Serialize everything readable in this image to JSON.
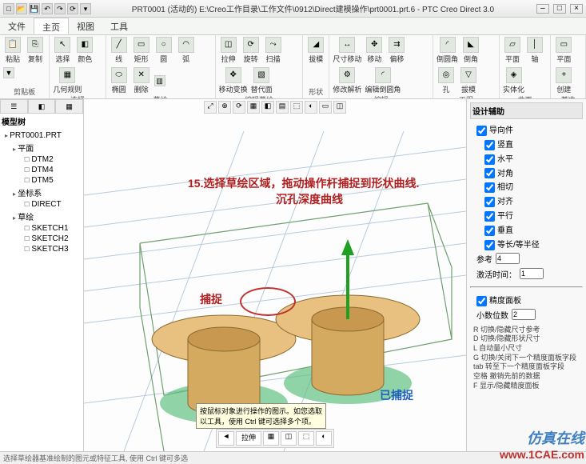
{
  "window": {
    "title": "PRT0001 (活动的) E:\\Creo工作目录\\工作文件\\0912\\Direct建模操作\\prt0001.prt.6 - PTC Creo Direct 3.0",
    "qat_icons": [
      "new",
      "open",
      "save",
      "undo",
      "redo",
      "regen",
      "close"
    ],
    "winbtns": [
      "–",
      "□",
      "×"
    ]
  },
  "menutabs": {
    "items": [
      "文件",
      "主页",
      "视图",
      "工具"
    ],
    "active": 1
  },
  "ribbon": {
    "groups": [
      {
        "label": "剪贴板",
        "items": [
          {
            "lbl": "粘贴",
            "ico": "📋"
          },
          {
            "lbl": "复制",
            "ico": "⎘"
          },
          {
            "lbl": "",
            "ico": "▼"
          }
        ]
      },
      {
        "label": "选择",
        "items": [
          {
            "lbl": "选择",
            "ico": "↖"
          },
          {
            "lbl": "颜色",
            "ico": "◧"
          },
          {
            "lbl": "几何规则",
            "ico": "▦"
          }
        ]
      },
      {
        "label": "草绘",
        "items": [
          {
            "lbl": "线",
            "ico": "╱"
          },
          {
            "lbl": "矩形",
            "ico": "▭"
          },
          {
            "lbl": "圆",
            "ico": "○"
          },
          {
            "lbl": "弧",
            "ico": "◠"
          },
          {
            "lbl": "椭圆",
            "ico": "⬭"
          },
          {
            "lbl": "删除",
            "ico": "✕"
          },
          {
            "lbl": "",
            "ico": "▥"
          }
        ]
      },
      {
        "label": "编辑草绘",
        "items": [
          {
            "lbl": "拉伸",
            "ico": "◫"
          },
          {
            "lbl": "旋转",
            "ico": "⟳"
          },
          {
            "lbl": "扫描",
            "ico": "⤳"
          },
          {
            "lbl": "移动变换",
            "ico": "✥"
          },
          {
            "lbl": "替代面",
            "ico": "▧"
          }
        ]
      },
      {
        "label": "形状",
        "items": [
          {
            "lbl": "拔模",
            "ico": "◢"
          }
        ]
      },
      {
        "label": "编辑",
        "items": [
          {
            "lbl": "尺寸移动",
            "ico": "↔"
          },
          {
            "lbl": "移动",
            "ico": "✥"
          },
          {
            "lbl": "偏移",
            "ico": "⇉"
          },
          {
            "lbl": "修改解析",
            "ico": "⚙"
          },
          {
            "lbl": "编辑倒圆角",
            "ico": "◜"
          }
        ]
      },
      {
        "label": "工程",
        "items": [
          {
            "lbl": "倒圆角",
            "ico": "◜"
          },
          {
            "lbl": "倒角",
            "ico": "◣"
          },
          {
            "lbl": "孔",
            "ico": "◎"
          },
          {
            "lbl": "拔模",
            "ico": "▽"
          }
        ]
      },
      {
        "label": "曲面",
        "items": [
          {
            "lbl": "平面",
            "ico": "▱"
          },
          {
            "lbl": "轴",
            "ico": "│"
          },
          {
            "lbl": "实体化",
            "ico": "◈"
          }
        ]
      },
      {
        "label": "基准",
        "items": [
          {
            "lbl": "平面",
            "ico": "▭"
          },
          {
            "lbl": "创建",
            "ico": "+"
          }
        ]
      }
    ]
  },
  "tree": {
    "tabs_icons": [
      "☰",
      "◧",
      "▦"
    ],
    "label": "模型树",
    "root": "PRT0001.PRT",
    "nodes": [
      {
        "label": "平面",
        "children": [
          "DTM2",
          "DTM4",
          "DTM5"
        ]
      },
      {
        "label": "坐标系",
        "children": [
          "DIRECT"
        ]
      },
      {
        "label": "草绘",
        "children": [
          "SKETCH1",
          "SKETCH2",
          "SKETCH3"
        ]
      }
    ]
  },
  "viewport": {
    "toolbar_icons": [
      "⤢",
      "⊕",
      "⟳",
      "▦",
      "◧",
      "▤",
      "⬚",
      "◐",
      "▭",
      "◫"
    ],
    "annotation_red_line1": "15.选择草绘区域，拖动操作杆捕捉到形状曲线.",
    "annotation_red_line2": "沉孔深度曲线",
    "circle_label": "捕捉",
    "annotation_blue": "已捕捉",
    "bottombar_label": "拉伸",
    "bottombar_icons": [
      "◄",
      "▦",
      "◫",
      "⬚",
      "◐"
    ],
    "tooltip": "按鼠标对象进行操作的图示。如您选取\n以工具，使用 Ctrl 键可选择多个项。",
    "scene": {
      "box_color": "#88bb88",
      "line_color": "#88aacc",
      "cyl_fill": "#d4a960",
      "cyl_stroke": "#8a6a30",
      "disk_fill": "#e8c080",
      "disk_green": "#60c080",
      "arrow_color": "#20a020"
    }
  },
  "rightpanel": {
    "header": "设计辅助",
    "guide_label": "导向件",
    "guides": [
      {
        "label": "竖直",
        "checked": true
      },
      {
        "label": "水平",
        "checked": true
      },
      {
        "label": "对角",
        "checked": true
      },
      {
        "label": "相切",
        "checked": true
      },
      {
        "label": "对齐",
        "checked": true
      },
      {
        "label": "平行",
        "checked": true
      },
      {
        "label": "垂直",
        "checked": true
      },
      {
        "label": "等长/等半径",
        "checked": true
      }
    ],
    "ref_label": "参考",
    "ref_value": "4",
    "delay_label": "激活时间：",
    "delay_value": "1",
    "precision_label": "精度面板",
    "precision_checked": true,
    "decimals_label": "小数位数",
    "decimals_value": "2",
    "hints": "R 切换/隐藏尺寸参考\nD 切换/隐藏形状尺寸\nL 自动量小尺寸\nG 切换/关闭下一个精度面板字段\ntab 转至下一个精度面板字段\n空格 撤销先前的数据\nF 显示/隐藏精度面板"
  },
  "status": "选择草绘器基准绘制的图元或特征工具,  使用 Ctrl 键可多选",
  "watermark": {
    "logo": "仿真在线",
    "url": "www.1CAE.com"
  }
}
